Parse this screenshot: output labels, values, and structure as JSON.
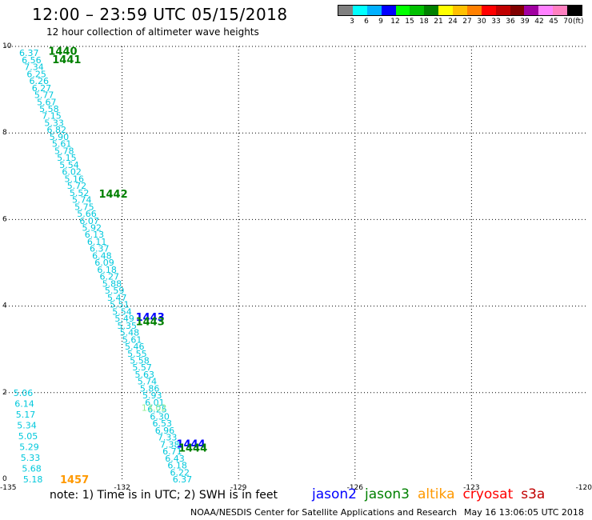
{
  "header": {
    "title": "12:00 – 23:59 UTC 05/15/2018",
    "subtitle": "12 hour collection of altimeter wave heights"
  },
  "colorbar": {
    "colors": [
      "#808080",
      "#00ffff",
      "#00b0ff",
      "#0000ff",
      "#00ff00",
      "#00c000",
      "#008000",
      "#ffff00",
      "#ffc000",
      "#ff8000",
      "#ff0000",
      "#c00000",
      "#800000",
      "#a000a0",
      "#ff80ff",
      "#ff80c0",
      "#000000"
    ],
    "labels": [
      "3",
      "6",
      "9",
      "12",
      "15",
      "18",
      "21",
      "24",
      "27",
      "30",
      "33",
      "36",
      "39",
      "42",
      "45",
      "70"
    ],
    "unit": "(ft)"
  },
  "chart_data": {
    "type": "scatter",
    "xlim": [
      -135,
      -120
    ],
    "ylim": [
      0,
      10
    ],
    "xticks": [
      "-135",
      "-132",
      "-129",
      "-126",
      "-123",
      "-120"
    ],
    "yticks": [
      "0",
      "2",
      "4",
      "6",
      "8",
      "10"
    ],
    "grid": true,
    "grid_x": [
      -132,
      -129,
      -126,
      -123
    ],
    "grid_y": [
      2,
      4,
      6,
      8,
      10
    ],
    "track_colors": {
      "cyan": "#00c8dc",
      "green": "#008000",
      "blue": "#0000ff",
      "lightgreen": "#90ee90",
      "orange": "#ff9900"
    },
    "track_main": {
      "lon_start": -134.65,
      "lat_start": 9.85,
      "lon_end": -130.7,
      "lat_end": 0.0,
      "values": [
        "6.37",
        "6.56",
        "7.34",
        "6.25",
        "6.26",
        "6.27",
        "5.77",
        "5.67",
        "5.58",
        "7.15",
        "5.33",
        "6.82",
        "5.90",
        "5.61",
        "5.78",
        "5.15",
        "5.54",
        "6.02",
        "5.16",
        "5.72",
        "5.52",
        "5.74",
        "5.75",
        "5.66",
        "6.07",
        "5.92",
        "6.13",
        "6.11",
        "6.37",
        "6.48",
        "6.09",
        "6.18",
        "6.27",
        "5.88",
        "5.59",
        "5.47",
        "5.51",
        "5.54",
        "5.49",
        "5.35",
        "5.48",
        "5.61",
        "5.46",
        "5.55",
        "5.58",
        "5.57",
        "5.63",
        "5.74",
        "5.86",
        "5.93",
        "6.01",
        "6.25",
        "6.30",
        "6.53",
        "6.96",
        "7.33",
        "7.38",
        "6.71",
        "6.43",
        "6.18",
        "6.22",
        "6.37"
      ]
    },
    "track_short": {
      "lon_start": -134.8,
      "lat_start": 2.0,
      "lon_end": -134.55,
      "lat_end": 0.0,
      "values": [
        "5.06",
        "6.14",
        "5.17",
        "5.34",
        "5.05",
        "5.29",
        "5.33",
        "5.68",
        "5.18"
      ]
    },
    "orbit_labels": [
      {
        "text": "1440",
        "lon": -133.9,
        "lat": 9.9,
        "color": "#008000"
      },
      {
        "text": "1441",
        "lon": -133.8,
        "lat": 9.7,
        "color": "#008000"
      },
      {
        "text": "1442",
        "lon": -132.6,
        "lat": 6.6,
        "color": "#008000"
      },
      {
        "text": "1443",
        "lon": -131.65,
        "lat": 3.75,
        "color": "#0000ff"
      },
      {
        "text": "1443",
        "lon": -131.65,
        "lat": 3.65,
        "color": "#008000"
      },
      {
        "text": "1444",
        "lon": -130.6,
        "lat": 0.82,
        "color": "#0000ff"
      },
      {
        "text": "1444",
        "lon": -130.55,
        "lat": 0.73,
        "color": "#008000"
      },
      {
        "text": "1457",
        "lon": -133.6,
        "lat": 0.0,
        "color": "#ff9900"
      }
    ],
    "faint_labels": [
      {
        "text": "13.02",
        "lon": -131.5,
        "lat": 1.65,
        "color": "#90ee90"
      }
    ]
  },
  "footer": {
    "note": "note: 1) Time is in UTC; 2) SWH is in feet",
    "satellites": [
      {
        "name": "jason2",
        "color": "#0000ff"
      },
      {
        "name": "jason3",
        "color": "#008000"
      },
      {
        "name": "altika",
        "color": "#ff9900"
      },
      {
        "name": "cryosat",
        "color": "#ff0000"
      },
      {
        "name": "s3a",
        "color": "#c00000"
      }
    ],
    "credit": "NOAA/NESDIS Center for Satellite Applications and Research",
    "timestamp": "May 16 13:06:05 UTC 2018"
  }
}
